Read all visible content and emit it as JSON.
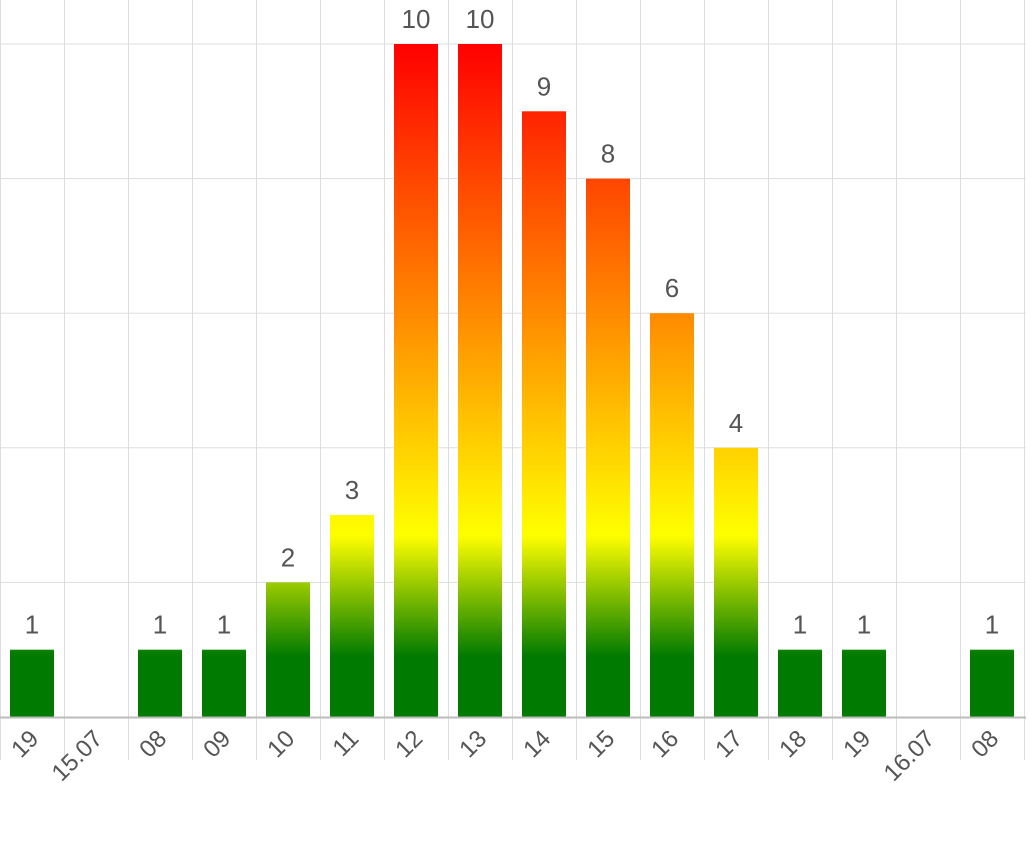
{
  "chart_data": {
    "type": "bar",
    "categories": [
      "19",
      "15.07",
      "08",
      "09",
      "10",
      "11",
      "12",
      "13",
      "14",
      "15",
      "16",
      "17",
      "18",
      "19",
      "16.07",
      "08"
    ],
    "values": [
      1,
      0,
      1,
      1,
      2,
      3,
      10,
      10,
      9,
      8,
      6,
      4,
      1,
      1,
      0,
      1
    ],
    "value_labels": [
      "1",
      "",
      "1",
      "1",
      "2",
      "3",
      "10",
      "10",
      "9",
      "8",
      "6",
      "4",
      "1",
      "1",
      "",
      "1"
    ],
    "ylim": [
      0,
      10
    ],
    "grid": true,
    "colors": {
      "low": "#007a00",
      "mid": "#ffff00",
      "high": "#ff0000",
      "grid": "#dddddd",
      "axis": "#bbbbbb"
    }
  }
}
